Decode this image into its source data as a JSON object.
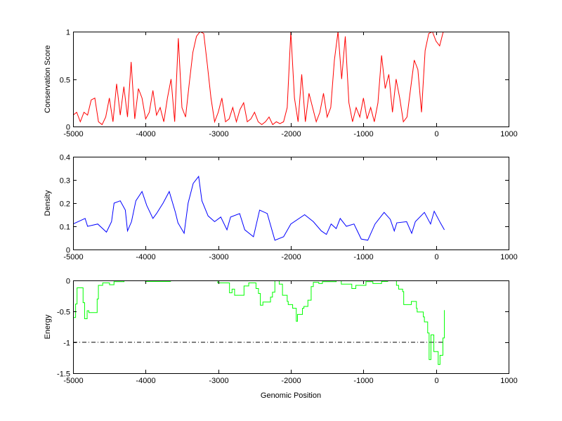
{
  "chart_data": [
    {
      "type": "line",
      "ylabel": "Conservation Score",
      "xlabel": "",
      "xlim": [
        -5000,
        1000
      ],
      "ylim": [
        0,
        1
      ],
      "xticks": [
        "-5000",
        "-4000",
        "-3000",
        "-2000",
        "-1000",
        "0",
        "1000"
      ],
      "yticks": [
        "0",
        "0.5",
        "1"
      ],
      "ytick_values": [
        0,
        0.5,
        1
      ],
      "color": "#ff0000",
      "x_start": -5000,
      "x_step": 50,
      "values": [
        0.12,
        0.15,
        0.05,
        0.15,
        0.12,
        0.28,
        0.3,
        0.05,
        0.02,
        0.1,
        0.3,
        0.05,
        0.45,
        0.12,
        0.42,
        0.1,
        0.68,
        0.08,
        0.4,
        0.3,
        0.08,
        0.15,
        0.38,
        0.12,
        0.2,
        0.05,
        0.3,
        0.5,
        0.05,
        0.93,
        0.2,
        0.1,
        0.45,
        0.78,
        0.95,
        1.0,
        0.98,
        0.65,
        0.3,
        0.05,
        0.15,
        0.3,
        0.05,
        0.08,
        0.2,
        0.05,
        0.18,
        0.25,
        0.05,
        0.08,
        0.15,
        0.05,
        0.02,
        0.05,
        0.1,
        0.02,
        0.05,
        0.03,
        0.05,
        0.2,
        1.0,
        0.3,
        0.05,
        0.55,
        0.05,
        0.35,
        0.2,
        0.05,
        0.15,
        0.35,
        0.1,
        0.2,
        0.7,
        1.0,
        0.5,
        0.95,
        0.25,
        0.05,
        0.2,
        0.1,
        0.3,
        0.08,
        0.2,
        0.05,
        0.25,
        0.75,
        0.4,
        0.55,
        0.15,
        0.5,
        0.3,
        0.05,
        0.1,
        0.4,
        0.7,
        0.6,
        0.15,
        0.8,
        0.98,
        1.0,
        0.9,
        0.85,
        1.0
      ]
    },
    {
      "type": "line",
      "ylabel": "Density",
      "xlabel": "",
      "xlim": [
        -5000,
        1000
      ],
      "ylim": [
        0,
        0.4
      ],
      "xticks": [
        "-5000",
        "-4000",
        "-3000",
        "-2000",
        "-1000",
        "0",
        "1000"
      ],
      "yticks": [
        "0",
        "0.1",
        "0.2",
        "0.3",
        "0.4"
      ],
      "ytick_values": [
        0,
        0.1,
        0.2,
        0.3,
        0.4
      ],
      "color": "#0000ff",
      "x": [
        -5000,
        -4834,
        -4800,
        -4660,
        -4540,
        -4470,
        -4435,
        -4350,
        -4280,
        -4250,
        -4195,
        -4135,
        -4050,
        -3985,
        -3900,
        -3850,
        -3760,
        -3675,
        -3590,
        -3555,
        -3470,
        -3415,
        -3345,
        -3270,
        -3225,
        -3140,
        -3050,
        -2965,
        -2880,
        -2830,
        -2705,
        -2635,
        -2515,
        -2430,
        -2325,
        -2220,
        -2100,
        -2000,
        -1810,
        -1690,
        -1580,
        -1510,
        -1445,
        -1375,
        -1320,
        -1235,
        -1130,
        -1030,
        -940,
        -840,
        -715,
        -630,
        -575,
        -540,
        -405,
        -335,
        -285,
        -160,
        -75,
        -25,
        60,
        115
      ],
      "y": [
        0.11,
        0.134,
        0.1,
        0.11,
        0.075,
        0.12,
        0.2,
        0.21,
        0.17,
        0.08,
        0.12,
        0.21,
        0.25,
        0.19,
        0.134,
        0.155,
        0.2,
        0.25,
        0.16,
        0.115,
        0.07,
        0.2,
        0.285,
        0.315,
        0.21,
        0.145,
        0.12,
        0.14,
        0.085,
        0.14,
        0.155,
        0.085,
        0.055,
        0.17,
        0.155,
        0.04,
        0.055,
        0.11,
        0.15,
        0.12,
        0.08,
        0.065,
        0.11,
        0.09,
        0.134,
        0.1,
        0.11,
        0.045,
        0.04,
        0.11,
        0.16,
        0.13,
        0.08,
        0.115,
        0.12,
        0.07,
        0.12,
        0.16,
        0.11,
        0.165,
        0.115,
        0.085
      ]
    },
    {
      "type": "line",
      "ylabel": "Energy",
      "xlabel": "Genomic Position",
      "xlim": [
        -5000,
        1000
      ],
      "ylim": [
        -1.5,
        0
      ],
      "xticks": [
        "-5000",
        "-4000",
        "-3000",
        "-2000",
        "-1000",
        "0",
        "1000"
      ],
      "yticks": [
        "-1.5",
        "-1",
        "-0.5",
        "0"
      ],
      "ytick_values": [
        -1.5,
        -1,
        -0.5,
        0
      ],
      "color": "#00ff00",
      "step": true,
      "x": [
        -5000,
        -4965,
        -4945,
        -4862,
        -4841,
        -4806,
        -4782,
        -4668,
        -4651,
        -4592,
        -4498,
        -4436,
        -4298,
        -4003,
        -3657,
        -3007,
        -2845,
        -2810,
        -2775,
        -2645,
        -2580,
        -2480,
        -2446,
        -2420,
        -2385,
        -2280,
        -2253,
        -2220,
        -2160,
        -2115,
        -2050,
        -2036,
        -1975,
        -1925,
        -1908,
        -1840,
        -1820,
        -1765,
        -1720,
        -1690,
        -1615,
        -1565,
        -1375,
        -1305,
        -1160,
        -1105,
        -965,
        -870,
        -750,
        -665,
        -545,
        -515,
        -460,
        -445,
        -340,
        -270,
        -260,
        -175,
        -160,
        -115,
        -95,
        -70,
        -30,
        30,
        55,
        95,
        115
      ],
      "y": [
        -0.6,
        -0.38,
        -0.12,
        -0.36,
        -0.62,
        -0.49,
        -0.52,
        -0.3,
        -0.08,
        -0.04,
        -0.07,
        -0.02,
        0,
        -0.015,
        0,
        -0.04,
        -0.2,
        -0.14,
        -0.24,
        -0.09,
        -0.04,
        -0.13,
        -0.21,
        -0.4,
        -0.35,
        -0.27,
        -0.19,
        0,
        -0.06,
        -0.24,
        -0.34,
        -0.39,
        -0.45,
        -0.66,
        -0.55,
        -0.45,
        -0.42,
        -0.32,
        -0.1,
        -0.03,
        -0.05,
        -0.02,
        0,
        -0.06,
        -0.13,
        -0.08,
        -0.02,
        -0.05,
        -0.015,
        0,
        -0.08,
        -0.14,
        -0.18,
        -0.39,
        -0.34,
        -0.45,
        -0.51,
        -0.59,
        -0.67,
        -0.85,
        -1.28,
        -0.88,
        -1.15,
        -1.36,
        -1.21,
        -0.93,
        -0.48
      ],
      "reference_line": {
        "y": -1,
        "x_range": [
          -5000,
          115
        ],
        "style": "dash-dot",
        "color": "#000000"
      }
    }
  ]
}
